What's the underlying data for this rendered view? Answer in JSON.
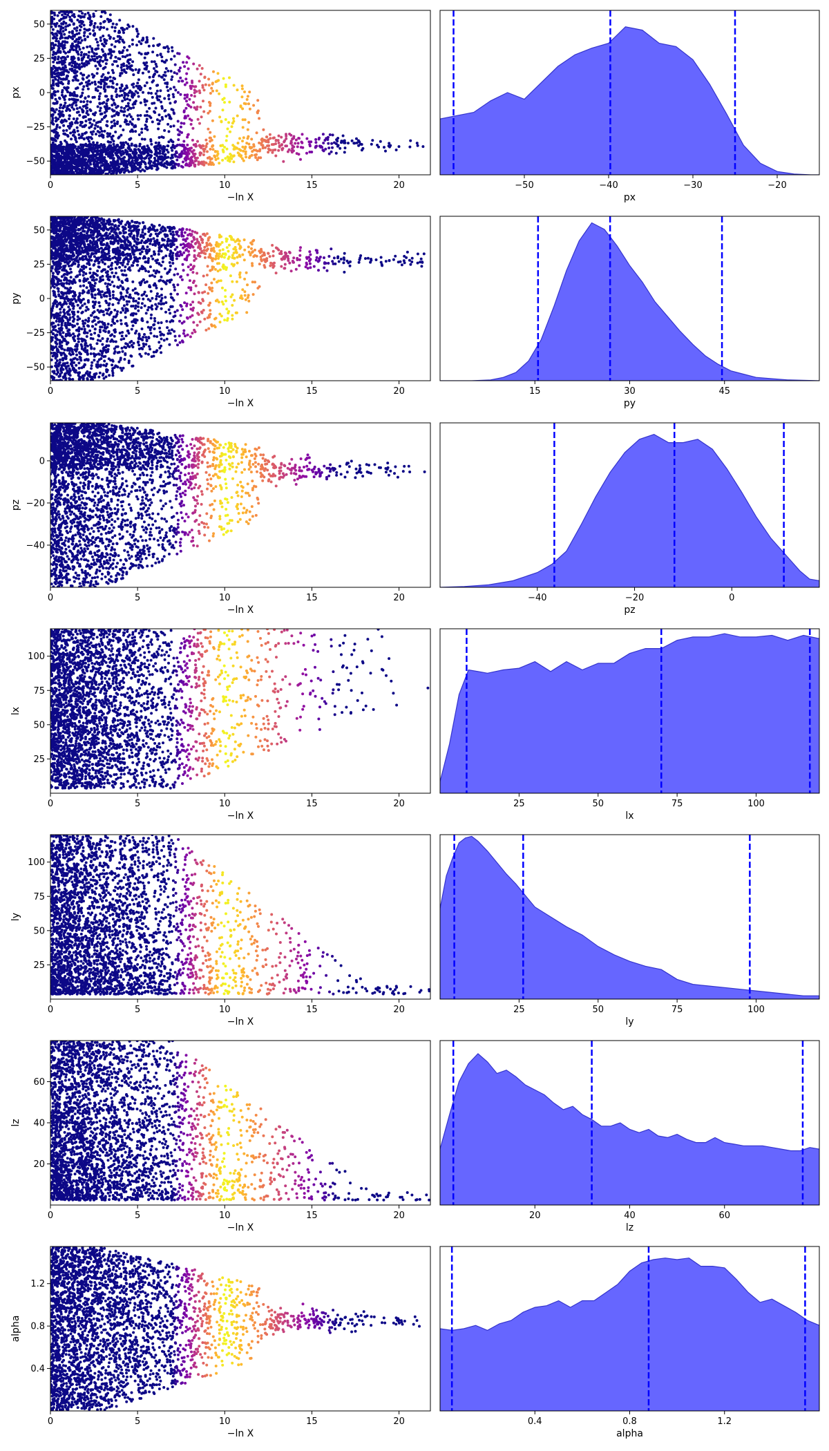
{
  "chart_data": [
    {
      "type": "scatter",
      "xlabel": "−ln X",
      "ylabel": "px",
      "xlim": [
        0,
        21.8
      ],
      "ylim": [
        -60,
        60
      ],
      "x_ticks": [
        0,
        5,
        10,
        15,
        20
      ],
      "y_ticks": [
        -50,
        -25,
        0,
        25,
        50
      ],
      "mode": "converge",
      "focus": [
        -38,
        -60,
        -20
      ]
    },
    {
      "type": "area",
      "xlabel": "px",
      "xlim": [
        -60,
        -15
      ],
      "ylim": [
        0,
        1
      ],
      "x_ticks": [
        -50,
        -40,
        -30,
        -20
      ],
      "quantiles": [
        -58.4,
        -39.8,
        -25.0
      ],
      "x": [
        -60,
        -58,
        -56,
        -54,
        -52,
        -50,
        -48,
        -46,
        -44,
        -42,
        -40,
        -38,
        -36,
        -34,
        -32,
        -30,
        -28,
        -26,
        -24,
        -22,
        -20,
        -18,
        -16,
        -15
      ],
      "density": [
        0.34,
        0.36,
        0.38,
        0.45,
        0.5,
        0.46,
        0.56,
        0.66,
        0.73,
        0.77,
        0.8,
        0.9,
        0.88,
        0.8,
        0.78,
        0.7,
        0.55,
        0.37,
        0.18,
        0.07,
        0.02,
        0.005,
        0.0,
        0.0
      ]
    },
    {
      "type": "scatter",
      "xlabel": "−ln X",
      "ylabel": "py",
      "xlim": [
        0,
        21.8
      ],
      "ylim": [
        -60,
        60
      ],
      "x_ticks": [
        0,
        5,
        10,
        15,
        20
      ],
      "y_ticks": [
        -50,
        -25,
        0,
        25,
        50
      ],
      "mode": "converge",
      "focus": [
        28,
        10,
        45
      ]
    },
    {
      "type": "area",
      "xlabel": "py",
      "xlim": [
        0,
        60
      ],
      "ylim": [
        0,
        1
      ],
      "x_ticks": [
        15,
        30,
        45
      ],
      "quantiles": [
        15.5,
        26.9,
        44.6
      ],
      "x": [
        0,
        5,
        8,
        10,
        12,
        14,
        16,
        18,
        20,
        22,
        24,
        26,
        28,
        30,
        32,
        34,
        36,
        38,
        40,
        42,
        44,
        46,
        48,
        50,
        55,
        60
      ],
      "density": [
        0,
        0,
        0.005,
        0.02,
        0.05,
        0.12,
        0.25,
        0.45,
        0.67,
        0.85,
        0.96,
        0.92,
        0.82,
        0.7,
        0.6,
        0.48,
        0.39,
        0.3,
        0.22,
        0.15,
        0.1,
        0.06,
        0.04,
        0.02,
        0.005,
        0
      ]
    },
    {
      "type": "scatter",
      "xlabel": "−ln X",
      "ylabel": "pz",
      "xlim": [
        0,
        21.8
      ],
      "ylim": [
        -60,
        18
      ],
      "x_ticks": [
        0,
        5,
        10,
        15,
        20
      ],
      "y_ticks": [
        -40,
        -20,
        0
      ],
      "mode": "converge",
      "focus": [
        -4,
        -30,
        14
      ]
    },
    {
      "type": "area",
      "xlabel": "pz",
      "xlim": [
        -60,
        18
      ],
      "ylim": [
        0,
        1
      ],
      "x_ticks": [
        -40,
        -20,
        0
      ],
      "quantiles": [
        -36.5,
        -11.8,
        10.7
      ],
      "x": [
        -60,
        -55,
        -50,
        -45,
        -40,
        -37,
        -34,
        -31,
        -28,
        -25,
        -22,
        -19,
        -16,
        -13,
        -10,
        -7,
        -4,
        -1,
        2,
        5,
        8,
        11,
        14,
        16,
        18
      ],
      "density": [
        0,
        0.005,
        0.015,
        0.04,
        0.09,
        0.14,
        0.22,
        0.38,
        0.55,
        0.7,
        0.82,
        0.9,
        0.93,
        0.88,
        0.88,
        0.9,
        0.84,
        0.72,
        0.58,
        0.43,
        0.3,
        0.2,
        0.1,
        0.05,
        0.04
      ]
    },
    {
      "type": "scatter",
      "xlabel": "−ln X",
      "ylabel": "lx",
      "xlim": [
        0,
        21.8
      ],
      "ylim": [
        0,
        120
      ],
      "x_ticks": [
        0,
        5,
        10,
        15,
        20
      ],
      "y_ticks": [
        25,
        50,
        75,
        100
      ],
      "mode": "upper",
      "focus": [
        5,
        120
      ]
    },
    {
      "type": "area",
      "xlabel": "lx",
      "xlim": [
        0,
        120
      ],
      "ylim": [
        0,
        1
      ],
      "x_ticks": [
        25,
        50,
        75,
        100
      ],
      "quantiles": [
        8.4,
        70.0,
        117.0
      ],
      "x": [
        0,
        3,
        6,
        9,
        12,
        15,
        20,
        25,
        30,
        35,
        40,
        45,
        50,
        55,
        60,
        65,
        70,
        75,
        80,
        85,
        90,
        95,
        100,
        105,
        110,
        115,
        120
      ],
      "density": [
        0.07,
        0.3,
        0.6,
        0.75,
        0.74,
        0.73,
        0.75,
        0.76,
        0.8,
        0.74,
        0.8,
        0.75,
        0.79,
        0.79,
        0.85,
        0.88,
        0.88,
        0.93,
        0.95,
        0.95,
        0.97,
        0.95,
        0.95,
        0.96,
        0.93,
        0.96,
        0.94
      ]
    },
    {
      "type": "scatter",
      "xlabel": "−ln X",
      "ylabel": "ly",
      "xlim": [
        0,
        21.8
      ],
      "ylim": [
        0,
        120
      ],
      "x_ticks": [
        0,
        5,
        10,
        15,
        20
      ],
      "y_ticks": [
        25,
        50,
        75,
        100
      ],
      "mode": "lower",
      "focus": [
        2,
        120
      ]
    },
    {
      "type": "area",
      "xlabel": "ly",
      "xlim": [
        0,
        120
      ],
      "ylim": [
        0,
        1
      ],
      "x_ticks": [
        25,
        50,
        75,
        100
      ],
      "quantiles": [
        4.5,
        26.3,
        98.0
      ],
      "x": [
        0,
        2,
        4,
        6,
        8,
        10,
        12,
        15,
        18,
        21,
        24,
        27,
        30,
        35,
        40,
        45,
        50,
        55,
        60,
        65,
        70,
        75,
        80,
        85,
        90,
        95,
        100,
        105,
        110,
        115,
        120
      ],
      "density": [
        0.55,
        0.75,
        0.86,
        0.95,
        0.98,
        0.99,
        0.96,
        0.9,
        0.83,
        0.76,
        0.7,
        0.63,
        0.56,
        0.5,
        0.44,
        0.39,
        0.32,
        0.27,
        0.23,
        0.2,
        0.18,
        0.12,
        0.09,
        0.08,
        0.07,
        0.06,
        0.05,
        0.04,
        0.03,
        0.02,
        0.02
      ]
    },
    {
      "type": "scatter",
      "xlabel": "−ln X",
      "ylabel": "lz",
      "xlim": [
        0,
        21.8
      ],
      "ylim": [
        0,
        80
      ],
      "x_ticks": [
        0,
        5,
        10,
        15,
        20
      ],
      "y_ticks": [
        20,
        40,
        60
      ],
      "mode": "lower",
      "focus": [
        1,
        80
      ]
    },
    {
      "type": "area",
      "xlabel": "lz",
      "xlim": [
        0,
        80
      ],
      "ylim": [
        0,
        1
      ],
      "x_ticks": [
        20,
        40,
        60
      ],
      "quantiles": [
        2.8,
        32.0,
        76.5
      ],
      "x": [
        0,
        2,
        4,
        6,
        8,
        10,
        12,
        14,
        16,
        18,
        20,
        22,
        24,
        26,
        28,
        30,
        32,
        34,
        36,
        38,
        40,
        42,
        44,
        46,
        48,
        50,
        52,
        54,
        56,
        58,
        60,
        62,
        64,
        66,
        68,
        70,
        72,
        74,
        76,
        78,
        80
      ],
      "density": [
        0.34,
        0.55,
        0.75,
        0.86,
        0.92,
        0.87,
        0.8,
        0.82,
        0.78,
        0.73,
        0.7,
        0.67,
        0.62,
        0.58,
        0.6,
        0.55,
        0.52,
        0.48,
        0.48,
        0.5,
        0.46,
        0.44,
        0.46,
        0.42,
        0.41,
        0.43,
        0.4,
        0.38,
        0.38,
        0.41,
        0.38,
        0.37,
        0.36,
        0.36,
        0.36,
        0.35,
        0.34,
        0.33,
        0.33,
        0.35,
        0.34
      ]
    },
    {
      "type": "scatter",
      "xlabel": "−ln X",
      "ylabel": "alpha",
      "xlim": [
        0,
        21.8
      ],
      "ylim": [
        0,
        1.55
      ],
      "x_ticks": [
        0,
        5,
        10,
        15,
        20
      ],
      "y_ticks": [
        0.4,
        0.8,
        1.2
      ],
      "mode": "converge",
      "focus": [
        0.85,
        0.45,
        1.35
      ]
    },
    {
      "type": "area",
      "xlabel": "alpha",
      "xlim": [
        0,
        1.6
      ],
      "ylim": [
        0,
        1
      ],
      "x_ticks": [
        0.4,
        0.8,
        1.2
      ],
      "quantiles": [
        0.05,
        0.88,
        1.54
      ],
      "x": [
        0,
        0.05,
        0.1,
        0.15,
        0.2,
        0.25,
        0.3,
        0.35,
        0.4,
        0.45,
        0.5,
        0.55,
        0.6,
        0.65,
        0.7,
        0.75,
        0.8,
        0.85,
        0.9,
        0.95,
        1.0,
        1.05,
        1.1,
        1.15,
        1.2,
        1.25,
        1.3,
        1.35,
        1.4,
        1.45,
        1.5,
        1.55,
        1.6
      ],
      "density": [
        0.5,
        0.49,
        0.5,
        0.52,
        0.49,
        0.53,
        0.55,
        0.6,
        0.63,
        0.64,
        0.67,
        0.63,
        0.67,
        0.67,
        0.72,
        0.77,
        0.85,
        0.9,
        0.92,
        0.93,
        0.92,
        0.93,
        0.88,
        0.88,
        0.87,
        0.8,
        0.72,
        0.66,
        0.68,
        0.64,
        0.6,
        0.55,
        0.52
      ]
    }
  ],
  "colors": {
    "scatter_base": "#0d0887",
    "density_fill": "#6666ff",
    "density_edge": "#3333cc",
    "quantile_line": "#0000ff"
  }
}
